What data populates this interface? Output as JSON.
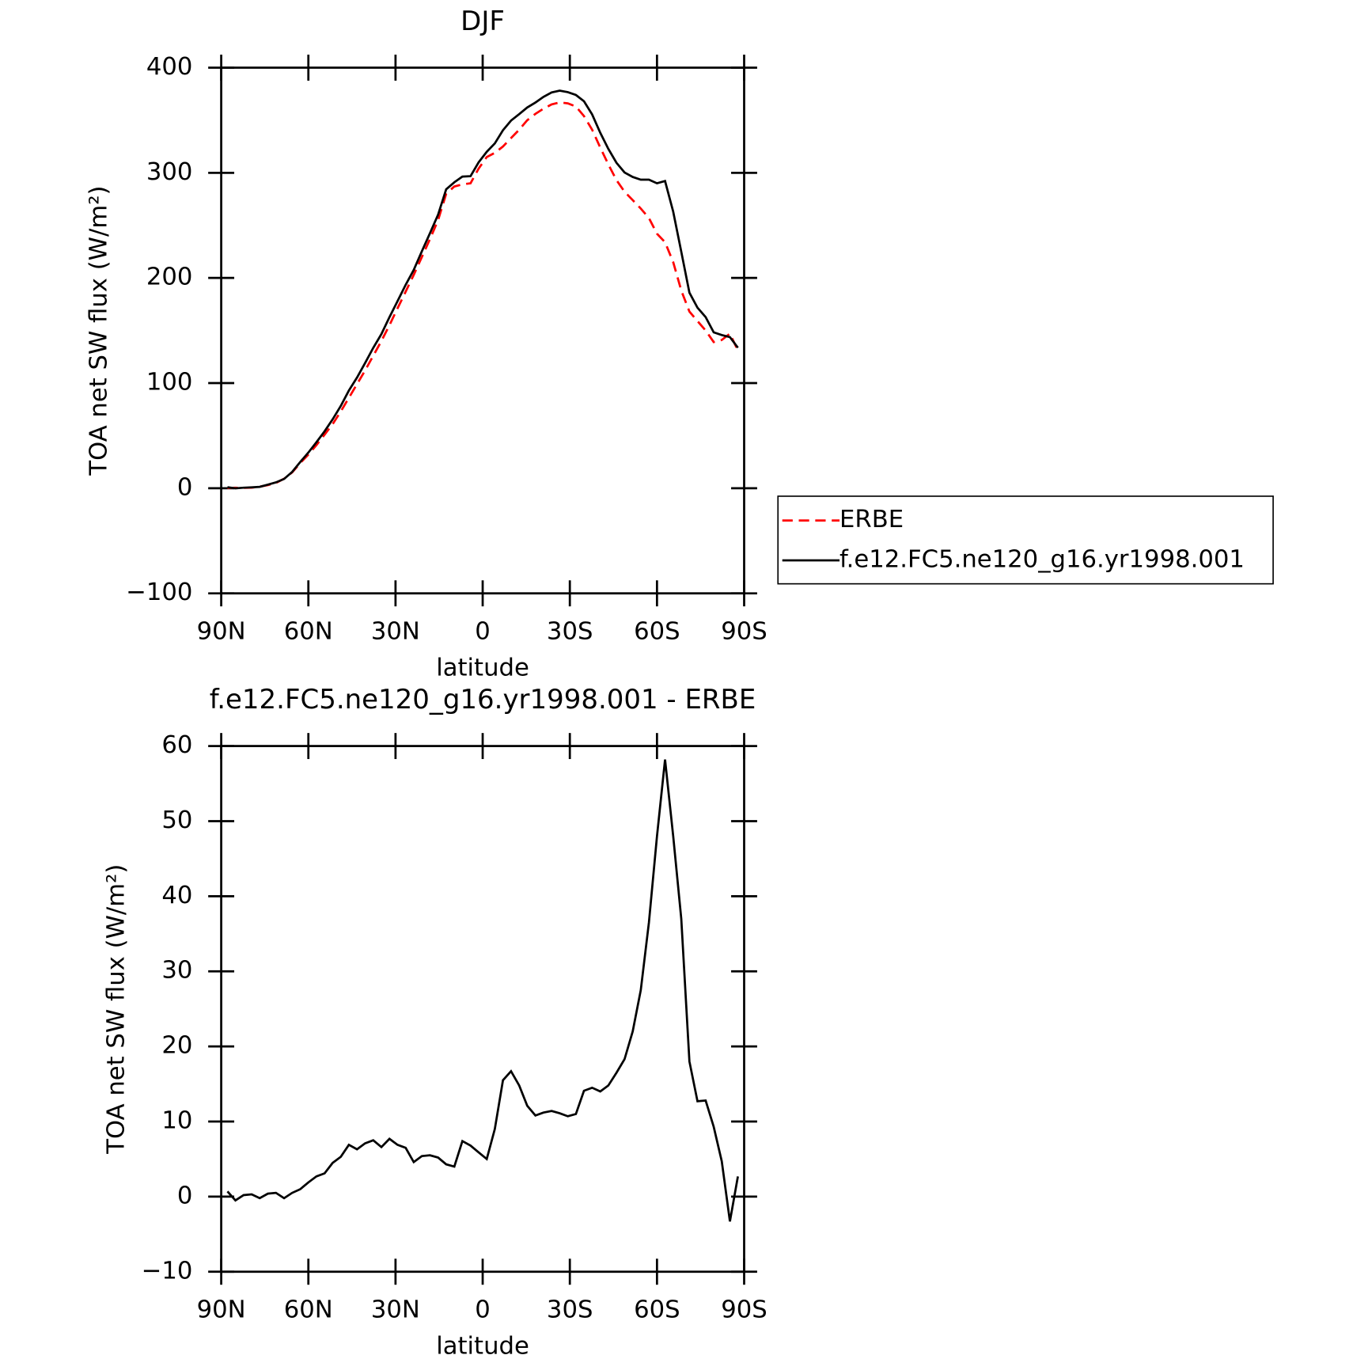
{
  "chart_data": [
    {
      "type": "line",
      "title": "DJF",
      "xlabel": "latitude",
      "ylabel": "TOA net SW flux (W/m²)",
      "x": [
        87.86,
        85.1,
        82.31,
        79.53,
        76.74,
        73.95,
        71.16,
        68.37,
        65.58,
        62.79,
        60.0,
        57.21,
        54.42,
        51.63,
        48.84,
        46.05,
        43.26,
        40.47,
        37.67,
        34.88,
        32.09,
        29.3,
        26.51,
        23.72,
        20.93,
        18.14,
        15.35,
        12.56,
        9.77,
        6.98,
        4.19,
        1.4,
        -1.4,
        -4.19,
        -6.98,
        -9.77,
        -12.56,
        -15.35,
        -18.14,
        -20.93,
        -23.72,
        -26.51,
        -29.3,
        -32.09,
        -34.88,
        -37.67,
        -40.47,
        -43.26,
        -46.05,
        -48.84,
        -51.63,
        -54.42,
        -57.21,
        -60.0,
        -62.79,
        -65.58,
        -68.37,
        -71.16,
        -73.95,
        -76.74,
        -79.53,
        -82.31,
        -85.1,
        -87.86
      ],
      "series": [
        {
          "name": "ERBE",
          "color": "#ff0000",
          "style": "dashed",
          "values": [
            0.2,
            0.4,
            0.3,
            0.5,
            1.5,
            3,
            5,
            9,
            15,
            24,
            32,
            41,
            51,
            61,
            73,
            86,
            99,
            112,
            126,
            140,
            155,
            171,
            187,
            203,
            220,
            237,
            255,
            280,
            287,
            289,
            290,
            304,
            315,
            319,
            325,
            333,
            341,
            350,
            356,
            361,
            365,
            367,
            366,
            363,
            354,
            341,
            324,
            308,
            293,
            282,
            274,
            266,
            257,
            242,
            234,
            215,
            188,
            168,
            159,
            150,
            139,
            141,
            147,
            131
          ]
        },
        {
          "name": "f.e12.FC5.ne120_g16.yr1998.001",
          "color": "#000000",
          "style": "solid",
          "values": [
            0.9,
            -0.1,
            0.5,
            0.8,
            1.3,
            3.4,
            5.5,
            8.8,
            15.5,
            25,
            33.9,
            43.7,
            54.1,
            65.5,
            78.3,
            92.9,
            105.3,
            119.1,
            133.5,
            146.6,
            162.7,
            177.9,
            193.5,
            207.6,
            225.4,
            242.5,
            260.2,
            284.3,
            291,
            296.4,
            296.8,
            309.9,
            320,
            328,
            340.5,
            349.7,
            355.8,
            362.1,
            366.8,
            372.2,
            376.4,
            378.1,
            376.7,
            374,
            368.1,
            355.5,
            338,
            322.8,
            309.5,
            300.3,
            296,
            293.5,
            293.5,
            290,
            292.2,
            263,
            225,
            186,
            171.7,
            162.8,
            148.3,
            145.7,
            143.7,
            133.7
          ]
        }
      ],
      "xlim": [
        90,
        -90
      ],
      "xticks": [
        {
          "value": 90,
          "label": "90N"
        },
        {
          "value": 60,
          "label": "60N"
        },
        {
          "value": 30,
          "label": "30N"
        },
        0,
        {
          "value": -30,
          "label": "30S"
        },
        {
          "value": -60,
          "label": "60S"
        },
        {
          "value": -90,
          "label": "90S"
        }
      ],
      "ylim": [
        -100,
        400
      ],
      "yticks": [
        {
          "value": -100,
          "label": "−100"
        },
        0,
        100,
        200,
        300,
        400
      ],
      "legend": "right"
    },
    {
      "type": "line",
      "title": "f.e12.FC5.ne120_g16.yr1998.001 - ERBE",
      "xlabel": "latitude",
      "ylabel": "TOA net SW flux (W/m²)",
      "x": [
        87.86,
        85.1,
        82.31,
        79.53,
        76.74,
        73.95,
        71.16,
        68.37,
        65.58,
        62.79,
        60.0,
        57.21,
        54.42,
        51.63,
        48.84,
        46.05,
        43.26,
        40.47,
        37.67,
        34.88,
        32.09,
        29.3,
        26.51,
        23.72,
        20.93,
        18.14,
        15.35,
        12.56,
        9.77,
        6.98,
        4.19,
        1.4,
        -1.4,
        -4.19,
        -6.98,
        -9.77,
        -12.56,
        -15.35,
        -18.14,
        -20.93,
        -23.72,
        -26.51,
        -29.3,
        -32.09,
        -34.88,
        -37.67,
        -40.47,
        -43.26,
        -46.05,
        -48.84,
        -51.63,
        -54.42,
        -57.21,
        -60.0,
        -62.79,
        -65.58,
        -68.37,
        -71.16,
        -73.95,
        -76.74,
        -79.53,
        -82.31,
        -85.1,
        -87.86
      ],
      "values": [
        0.7,
        -0.5,
        0.2,
        0.3,
        -0.2,
        0.4,
        0.5,
        -0.2,
        0.5,
        1.0,
        1.9,
        2.7,
        3.1,
        4.5,
        5.3,
        6.9,
        6.3,
        7.1,
        7.5,
        6.6,
        7.7,
        6.9,
        6.5,
        4.6,
        5.4,
        5.5,
        5.2,
        4.3,
        4.0,
        7.4,
        6.8,
        5.9,
        5.0,
        9.0,
        15.5,
        16.7,
        14.8,
        12.1,
        10.8,
        11.2,
        11.4,
        11.1,
        10.7,
        11.0,
        14.1,
        14.5,
        14.0,
        14.8,
        16.5,
        18.3,
        22.0,
        27.5,
        36.5,
        48.0,
        58.2,
        48.0,
        37.0,
        18.0,
        12.7,
        12.8,
        9.3,
        4.7,
        -3.3,
        2.7
      ],
      "color": "#000000",
      "xlim": [
        90,
        -90
      ],
      "xticks": [
        {
          "value": 90,
          "label": "90N"
        },
        {
          "value": 60,
          "label": "60N"
        },
        {
          "value": 30,
          "label": "30N"
        },
        0,
        {
          "value": -30,
          "label": "30S"
        },
        {
          "value": -60,
          "label": "60S"
        },
        {
          "value": -90,
          "label": "90S"
        }
      ],
      "ylim": [
        -10,
        60
      ],
      "yticks": [
        {
          "value": -10,
          "label": "−10"
        },
        0,
        10,
        20,
        30,
        40,
        50,
        60
      ]
    }
  ]
}
